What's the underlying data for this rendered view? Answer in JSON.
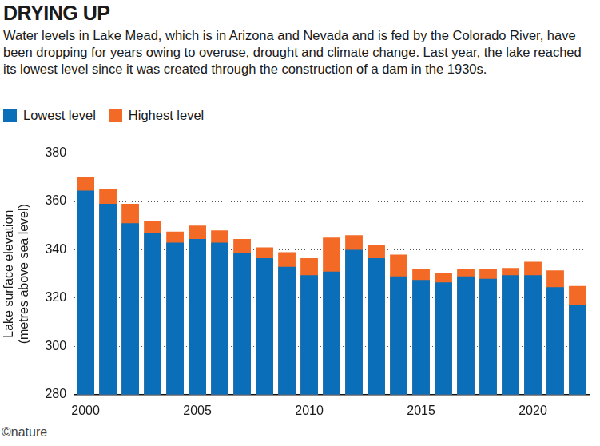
{
  "chart_data": {
    "type": "bar",
    "title": "DRYING UP",
    "subtitle": "Water levels in Lake Mead, which is in Arizona and Nevada and is fed by the Colorado River, have been dropping for years owing to overuse, drought and climate change. Last year, the lake reached its lowest level since it was created through the construction of a dam in the 1930s.",
    "y_label": [
      "Lake surface elevation",
      "(metres above sea level)"
    ],
    "credit": "©nature",
    "categories": [
      2000,
      null,
      null,
      null,
      null,
      2005,
      null,
      null,
      null,
      null,
      2010,
      null,
      null,
      null,
      null,
      2015,
      null,
      null,
      null,
      null,
      2020,
      null,
      null
    ],
    "series": [
      {
        "name": "Lowest level",
        "color": "#0a6fb8",
        "values": [
          364.5,
          359,
          351,
          347,
          343,
          344.5,
          343,
          338.5,
          336.5,
          333,
          329.5,
          331,
          340,
          336.5,
          329,
          327.5,
          326.5,
          329,
          328,
          329.5,
          329.5,
          324.5,
          317
        ]
      },
      {
        "name": "Highest level",
        "color": "#f26a26",
        "values": [
          370,
          365,
          359,
          352,
          347.5,
          350,
          348,
          344.5,
          341,
          339,
          336.5,
          345,
          346,
          342,
          338,
          332,
          330.5,
          332,
          332,
          332.5,
          335,
          331.5,
          325
        ]
      }
    ],
    "ylim": [
      280,
      380
    ],
    "yticks": [
      280,
      300,
      320,
      340,
      360,
      380
    ],
    "grid": true,
    "legend": "top-left"
  }
}
